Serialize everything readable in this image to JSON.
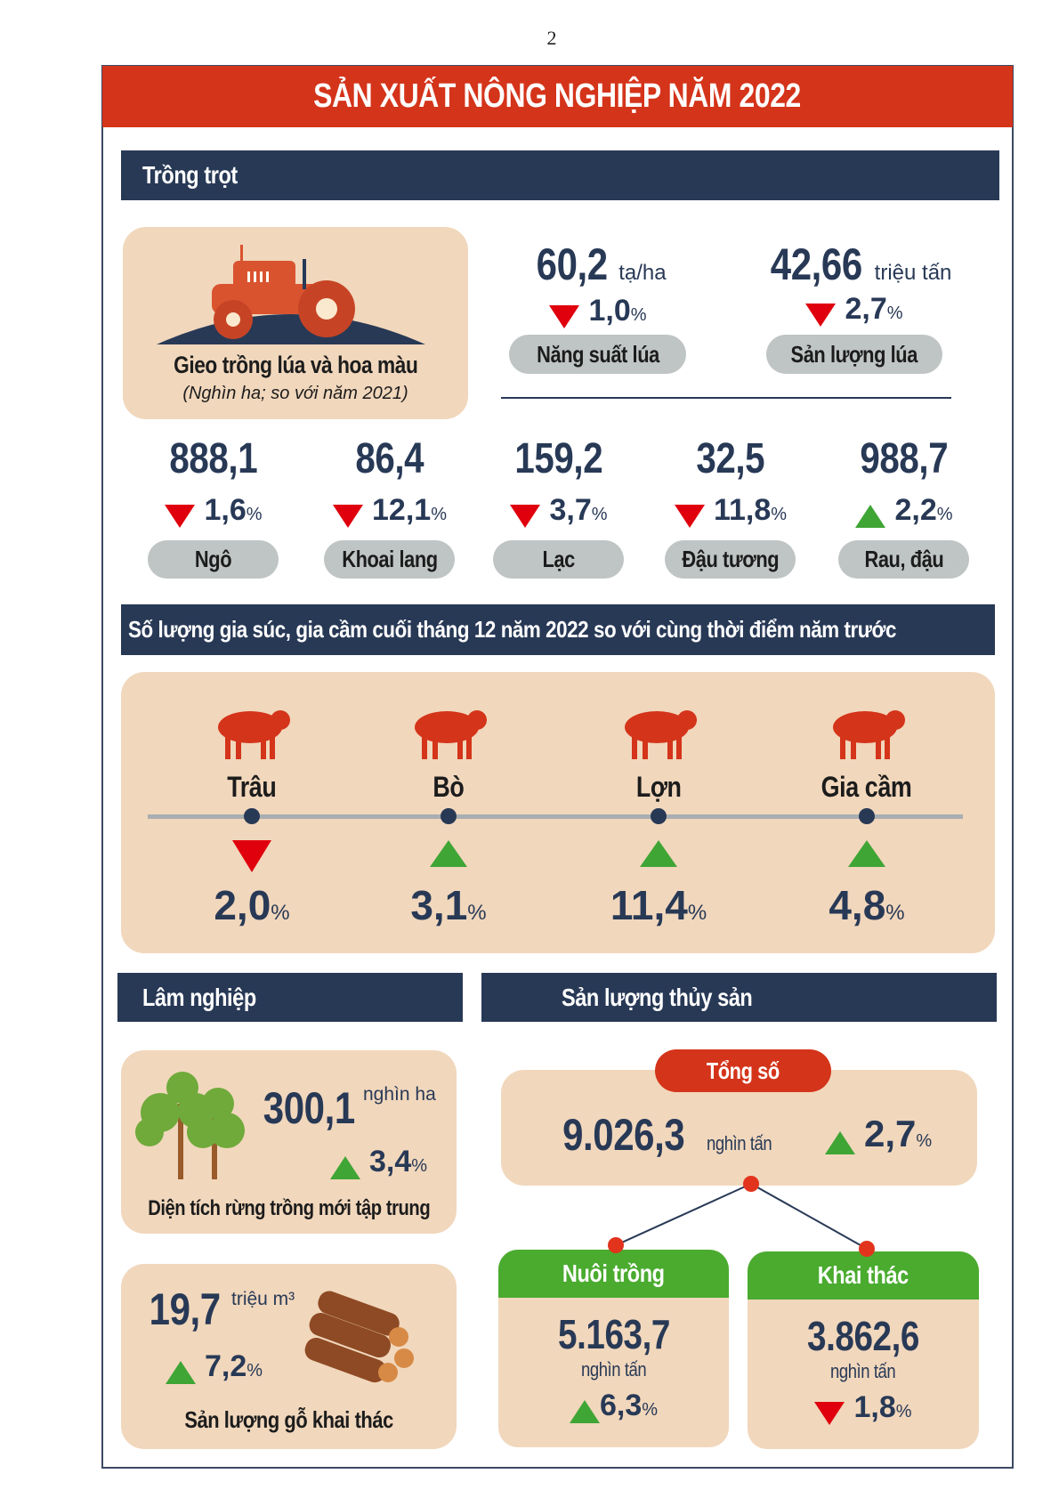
{
  "page_number": "2",
  "title": "SẢN XUẤT NÔNG NGHIỆP NĂM 2022",
  "colors": {
    "banner": "#d4341a",
    "navy": "#283956",
    "beige": "#f1d7bc",
    "pill": "#bfc5c4",
    "green": "#4aab2f",
    "down": "#e0000d",
    "up": "#3fa535"
  },
  "trong_trot": {
    "heading": "Trồng trọt",
    "sowing": {
      "title": "Gieo trồng lúa và hoa màu",
      "subtitle": "(Nghìn ha; so với năm 2021)",
      "icon": "tractor-icon"
    },
    "rice_yield": {
      "value": "60,2",
      "unit": "tạ/ha",
      "change": "1,0",
      "pct": "%",
      "direction": "down",
      "label": "Năng suất lúa"
    },
    "rice_output": {
      "value": "42,66",
      "unit": "triệu tấn",
      "change": "2,7",
      "pct": "%",
      "direction": "down",
      "label": "Sản lượng lúa"
    },
    "crops": [
      {
        "value": "888,1",
        "change": "1,6",
        "pct": "%",
        "direction": "down",
        "label": "Ngô"
      },
      {
        "value": "86,4",
        "change": "12,1",
        "pct": "%",
        "direction": "down",
        "label": "Khoai lang"
      },
      {
        "value": "159,2",
        "change": "3,7",
        "pct": "%",
        "direction": "down",
        "label": "Lạc"
      },
      {
        "value": "32,5",
        "change": "11,8",
        "pct": "%",
        "direction": "down",
        "label": "Đậu tương"
      },
      {
        "value": "988,7",
        "change": "2,2",
        "pct": "%",
        "direction": "up",
        "label": "Rau, đậu"
      }
    ]
  },
  "livestock": {
    "heading": "Số lượng gia súc, gia cầm cuối tháng 12 năm 2022 so với cùng thời điểm năm trước",
    "items": [
      {
        "label": "Trâu",
        "change": "2,0",
        "pct": "%",
        "direction": "down",
        "icon": "buffalo-icon"
      },
      {
        "label": "Bò",
        "change": "3,1",
        "pct": "%",
        "direction": "up",
        "icon": "cow-icon"
      },
      {
        "label": "Lợn",
        "change": "11,4",
        "pct": "%",
        "direction": "up",
        "icon": "pig-icon"
      },
      {
        "label": "Gia cầm",
        "change": "4,8",
        "pct": "%",
        "direction": "up",
        "icon": "poultry-icon"
      }
    ]
  },
  "lam_nghiep": {
    "heading": "Lâm nghiệp",
    "forest": {
      "value": "300,1",
      "unit": "nghìn ha",
      "change": "3,4",
      "pct": "%",
      "direction": "up",
      "label": "Diện tích rừng trồng mới tập trung"
    },
    "wood": {
      "value": "19,7",
      "unit": "triệu m³",
      "change": "7,2",
      "pct": "%",
      "direction": "up",
      "label": "Sản lượng gỗ khai thác"
    }
  },
  "thuy_san": {
    "heading": "Sản lượng thủy sản",
    "total": {
      "label": "Tổng số",
      "value": "9.026,3",
      "unit": "nghìn tấn",
      "change": "2,7",
      "pct": "%",
      "direction": "up"
    },
    "aquaculture": {
      "label": "Nuôi trồng",
      "value": "5.163,7",
      "unit": "nghìn tấn",
      "change": "6,3",
      "pct": "%",
      "direction": "up"
    },
    "capture": {
      "label": "Khai thác",
      "value": "3.862,6",
      "unit": "nghìn tấn",
      "change": "1,8",
      "pct": "%",
      "direction": "down"
    }
  }
}
